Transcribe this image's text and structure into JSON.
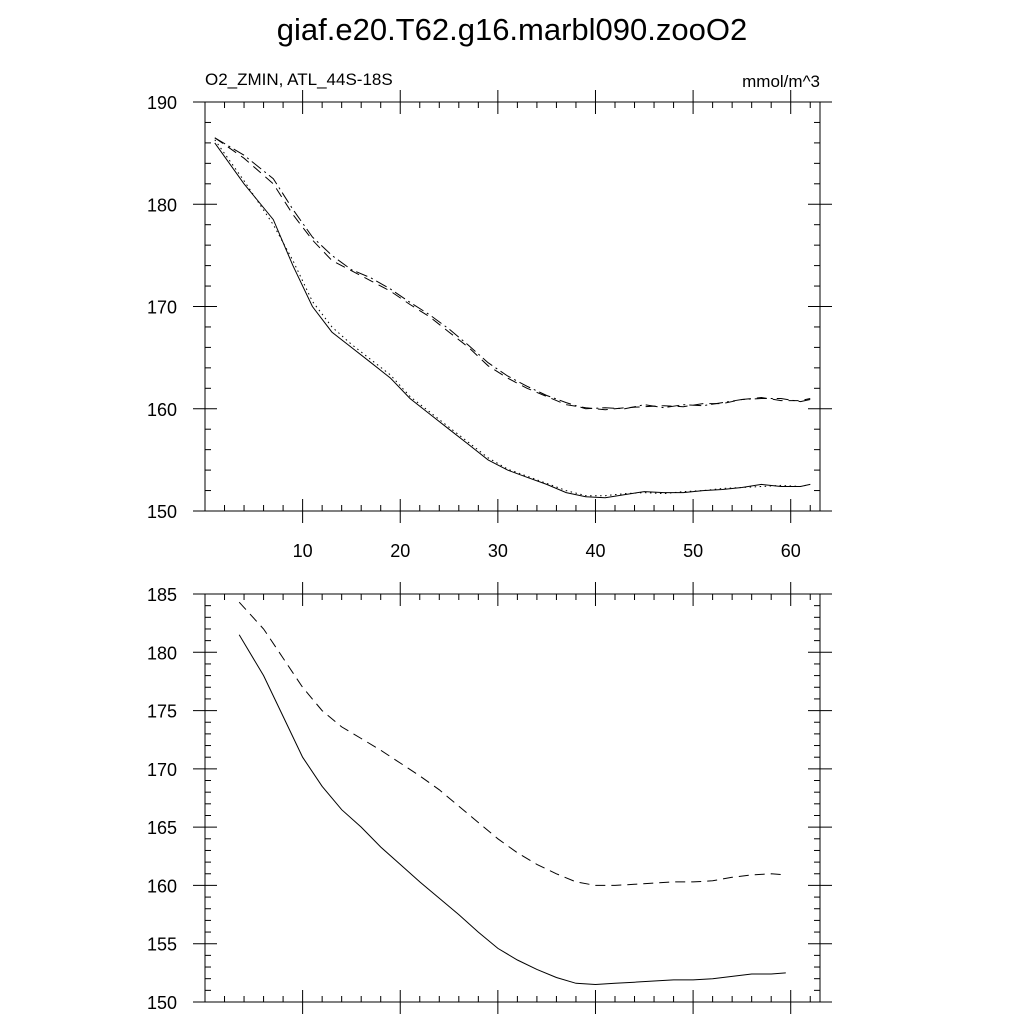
{
  "title": "giaf.e20.T62.g16.marbl090.zooO2",
  "subtitle_left": "O2_ZMIN, ATL_44S-18S",
  "subtitle_right": "mmol/m^3",
  "chart_data": [
    {
      "type": "line",
      "title": "",
      "xlim": [
        0,
        63
      ],
      "ylim": [
        150,
        190
      ],
      "xticks": [
        10,
        20,
        30,
        40,
        50,
        60
      ],
      "yticks": [
        150,
        160,
        170,
        180,
        190
      ],
      "x_minor_step": 2,
      "y_minor_step": 2,
      "grid": false,
      "series": [
        {
          "style": "solid",
          "x": [
            1,
            4,
            7,
            9,
            11,
            13,
            15,
            17,
            19,
            21,
            23,
            25,
            27,
            29,
            31,
            33,
            35,
            37,
            39,
            41,
            43,
            45,
            47,
            49,
            51,
            53,
            55,
            57,
            59,
            61,
            62
          ],
          "values": [
            186.0,
            182.0,
            178.5,
            174.0,
            170.0,
            167.5,
            166.0,
            164.5,
            163.0,
            161.0,
            159.5,
            158.0,
            156.5,
            155.0,
            154.0,
            153.3,
            152.6,
            151.8,
            151.4,
            151.3,
            151.6,
            151.9,
            151.8,
            151.8,
            152.0,
            152.1,
            152.3,
            152.6,
            152.4,
            152.4,
            152.6
          ]
        },
        {
          "style": "dotted",
          "x": [
            1,
            4,
            7,
            9,
            11,
            13,
            15,
            17,
            19,
            21,
            23,
            25,
            27,
            29,
            31,
            33,
            35,
            37,
            39,
            41,
            43,
            45,
            47,
            49,
            51,
            53,
            55,
            57,
            59,
            61,
            62
          ],
          "values": [
            186.3,
            182.3,
            178.0,
            174.5,
            170.5,
            168.0,
            166.3,
            164.8,
            163.3,
            161.2,
            159.7,
            158.2,
            156.7,
            155.2,
            154.1,
            153.4,
            152.7,
            152.0,
            151.5,
            151.5,
            151.7,
            151.8,
            151.7,
            151.9,
            152.0,
            152.2,
            152.3,
            152.4,
            152.5,
            152.4,
            152.6
          ]
        },
        {
          "style": "dashed",
          "x": [
            1,
            4,
            7,
            9,
            11,
            13,
            15,
            17,
            19,
            21,
            23,
            25,
            27,
            29,
            31,
            33,
            35,
            37,
            39,
            41,
            43,
            45,
            47,
            49,
            51,
            53,
            55,
            57,
            59,
            61,
            62
          ],
          "values": [
            186.5,
            184.5,
            182.0,
            179.0,
            176.5,
            174.5,
            173.5,
            172.5,
            171.5,
            170.2,
            169.0,
            167.5,
            166.0,
            164.2,
            163.0,
            162.0,
            161.2,
            160.4,
            160.1,
            159.9,
            160.1,
            160.2,
            160.3,
            160.2,
            160.5,
            160.5,
            160.9,
            161.1,
            160.8,
            160.8,
            161.0
          ]
        },
        {
          "style": "dashdot",
          "x": [
            1,
            4,
            7,
            9,
            11,
            13,
            15,
            17,
            19,
            21,
            23,
            25,
            27,
            29,
            31,
            33,
            35,
            37,
            39,
            41,
            43,
            45,
            47,
            49,
            51,
            53,
            55,
            57,
            59,
            61,
            62
          ],
          "values": [
            186.5,
            184.8,
            182.5,
            179.5,
            176.8,
            175.0,
            173.6,
            172.8,
            171.7,
            170.4,
            169.2,
            167.8,
            166.2,
            164.5,
            163.2,
            162.2,
            161.3,
            160.6,
            160.0,
            160.1,
            160.0,
            160.4,
            160.1,
            160.4,
            160.3,
            160.6,
            160.9,
            161.0,
            161.0,
            160.7,
            160.9
          ]
        }
      ]
    },
    {
      "type": "line",
      "title": "",
      "xlim": [
        0,
        63
      ],
      "ylim": [
        150,
        185
      ],
      "xticks": [
        10,
        20,
        30,
        40,
        50,
        60
      ],
      "xticklabels": [],
      "yticks": [
        150,
        155,
        160,
        165,
        170,
        175,
        180,
        185
      ],
      "x_minor_step": 2,
      "y_minor_step": 1,
      "grid": false,
      "series": [
        {
          "style": "solid",
          "x": [
            3.5,
            6,
            8,
            10,
            12,
            14,
            16,
            18,
            20,
            22,
            24,
            26,
            28,
            30,
            32,
            34,
            36,
            38,
            40,
            42,
            44,
            46,
            48,
            50,
            52,
            54,
            56,
            58,
            59.5
          ],
          "values": [
            181.5,
            178.0,
            174.5,
            171.0,
            168.5,
            166.5,
            165.0,
            163.3,
            161.8,
            160.3,
            158.9,
            157.5,
            156.0,
            154.6,
            153.6,
            152.8,
            152.1,
            151.6,
            151.5,
            151.6,
            151.7,
            151.8,
            151.9,
            151.9,
            152.0,
            152.2,
            152.4,
            152.4,
            152.5
          ]
        },
        {
          "style": "dashed",
          "x": [
            3.5,
            6,
            8,
            10,
            12,
            14,
            16,
            18,
            20,
            22,
            24,
            26,
            28,
            30,
            32,
            34,
            36,
            38,
            40,
            42,
            44,
            46,
            48,
            50,
            52,
            54,
            56,
            58,
            59.5
          ],
          "values": [
            184.3,
            182.0,
            179.5,
            177.0,
            175.0,
            173.6,
            172.6,
            171.6,
            170.5,
            169.4,
            168.2,
            166.8,
            165.4,
            164.0,
            162.8,
            161.8,
            161.0,
            160.3,
            160.0,
            160.0,
            160.1,
            160.2,
            160.3,
            160.3,
            160.4,
            160.7,
            160.9,
            161.0,
            160.9
          ]
        }
      ]
    }
  ]
}
